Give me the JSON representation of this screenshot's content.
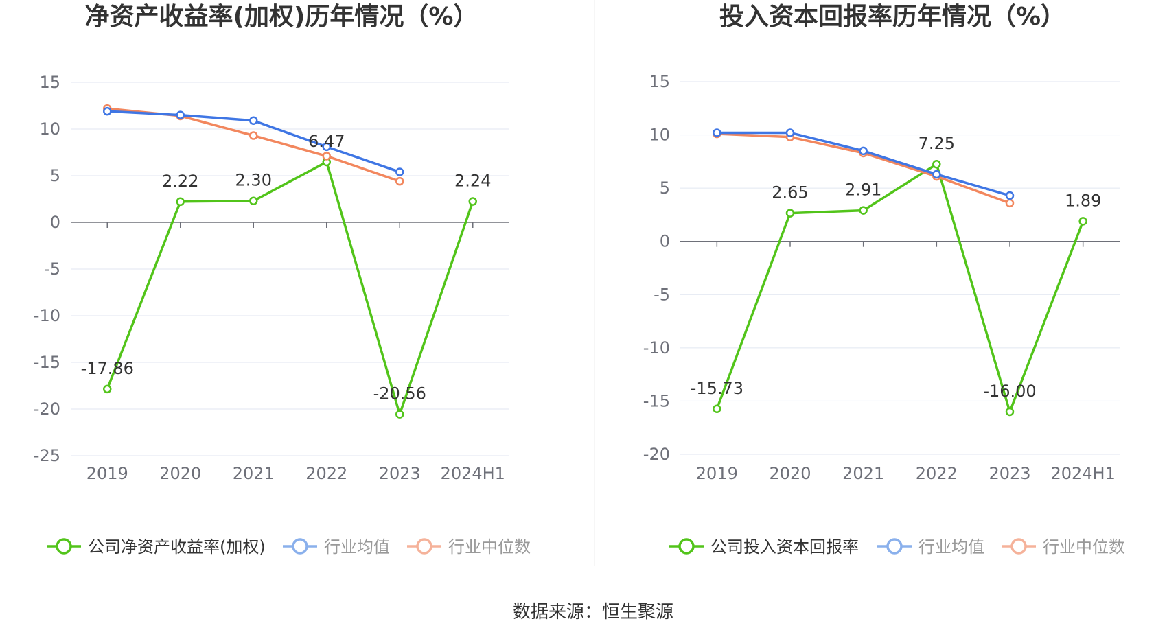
{
  "source": "数据来源：恒生聚源",
  "colors": {
    "company": "#52c41a",
    "avg": "#3f76e4",
    "median": "#f2875e",
    "legend_avg": "#8ab0ec",
    "legend_median": "#f5b29a",
    "grid": "#e0e6f1",
    "axis": "#6e7079"
  },
  "chart_data": [
    {
      "type": "line",
      "title": "净资产收益率(加权)历年情况（%）",
      "categories": [
        "2019",
        "2020",
        "2021",
        "2022",
        "2023",
        "2024H1"
      ],
      "yticks": [
        "15",
        "10",
        "5",
        "0",
        "-5",
        "-10",
        "-15",
        "-20",
        "-25"
      ],
      "ylim": [
        -25,
        15
      ],
      "series": [
        {
          "name": "公司净资产收益率(加权)",
          "key": "company",
          "values": [
            -17.86,
            2.22,
            2.3,
            6.47,
            -20.56,
            2.24
          ],
          "labels": [
            "-17.86",
            "2.22",
            "2.30",
            "6.47",
            "-20.56",
            "2.24"
          ]
        },
        {
          "name": "行业均值",
          "key": "avg",
          "values": [
            11.9,
            11.5,
            10.9,
            8.1,
            5.4,
            null
          ]
        },
        {
          "name": "行业中位数",
          "key": "median",
          "values": [
            12.2,
            11.4,
            9.3,
            7.1,
            4.4,
            null
          ]
        }
      ]
    },
    {
      "type": "line",
      "title": "投入资本回报率历年情况（%）",
      "categories": [
        "2019",
        "2020",
        "2021",
        "2022",
        "2023",
        "2024H1"
      ],
      "yticks": [
        "15",
        "10",
        "5",
        "0",
        "-5",
        "-10",
        "-15",
        "-20"
      ],
      "ylim": [
        -20,
        15
      ],
      "series": [
        {
          "name": "公司投入资本回报率",
          "key": "company",
          "values": [
            -15.73,
            2.65,
            2.91,
            7.25,
            -16.0,
            1.89
          ],
          "labels": [
            "-15.73",
            "2.65",
            "2.91",
            "7.25",
            "-16.00",
            "1.89"
          ]
        },
        {
          "name": "行业均值",
          "key": "avg",
          "values": [
            10.2,
            10.2,
            8.5,
            6.3,
            4.3,
            null
          ]
        },
        {
          "name": "行业中位数",
          "key": "median",
          "values": [
            10.1,
            9.8,
            8.3,
            6.1,
            3.6,
            null
          ]
        }
      ]
    }
  ]
}
